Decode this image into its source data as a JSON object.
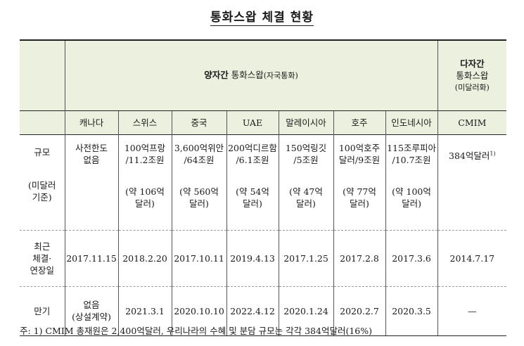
{
  "title": "통화스왑 체결 현황",
  "header": {
    "bilateral_bold": "양자간",
    "bilateral_rest": " 통화스왑",
    "bilateral_paren": "(자국통화)",
    "multilateral_line1": "다자간",
    "multilateral_line2": "통화스왑",
    "multilateral_line3": "(미달러화)"
  },
  "columns": [
    "캐나다",
    "스위스",
    "중국",
    "UAE",
    "말레이시아",
    "호주",
    "인도네시아",
    "CMIM"
  ],
  "rows": {
    "scale": {
      "label_line1": "규모",
      "label_line2": "(미달러",
      "label_line3": "기준)",
      "values": [
        {
          "amount": "사전한도\n없음",
          "usd": ""
        },
        {
          "amount": "100억프랑\n/11.2조원",
          "usd": "(약 106억\n달러)"
        },
        {
          "amount": "3,600억위안\n/64조원",
          "usd": "(약 560억\n달러)"
        },
        {
          "amount": "200억디르함\n/6.1조원",
          "usd": "(약 54억\n달러)"
        },
        {
          "amount": "150억링깃\n/5조원",
          "usd": "(약 47억\n달러)"
        },
        {
          "amount": "100억호주\n달러/9조원",
          "usd": "(약 77억\n달러)"
        },
        {
          "amount": "115조루피아\n/10.7조원",
          "usd": "(약 100억\n달러)"
        },
        {
          "amount": "384억달러",
          "usd": "",
          "sup": "1)"
        }
      ]
    },
    "recent": {
      "label_line1": "최근",
      "label_line2": "체결·",
      "label_line3": "연장일",
      "values": [
        "2017.11.15",
        "2018.2.20",
        "2017.10.11",
        "2019.4.13",
        "2017.1.25",
        "2017.2.8",
        "2017.3.6",
        "2014.7.17"
      ]
    },
    "maturity": {
      "label": "만기",
      "values": [
        "없음\n(상설계약)",
        "2021.3.1",
        "2020.10.10",
        "2022.4.12",
        "2020.1.24",
        "2020.2.7",
        "2020.3.5",
        "—"
      ]
    }
  },
  "footnote": "주: 1) CMIM 총재원은 2,400억달러, 우리나라의 수혜 및 분담 규모는 각각 384억달러(16%)"
}
